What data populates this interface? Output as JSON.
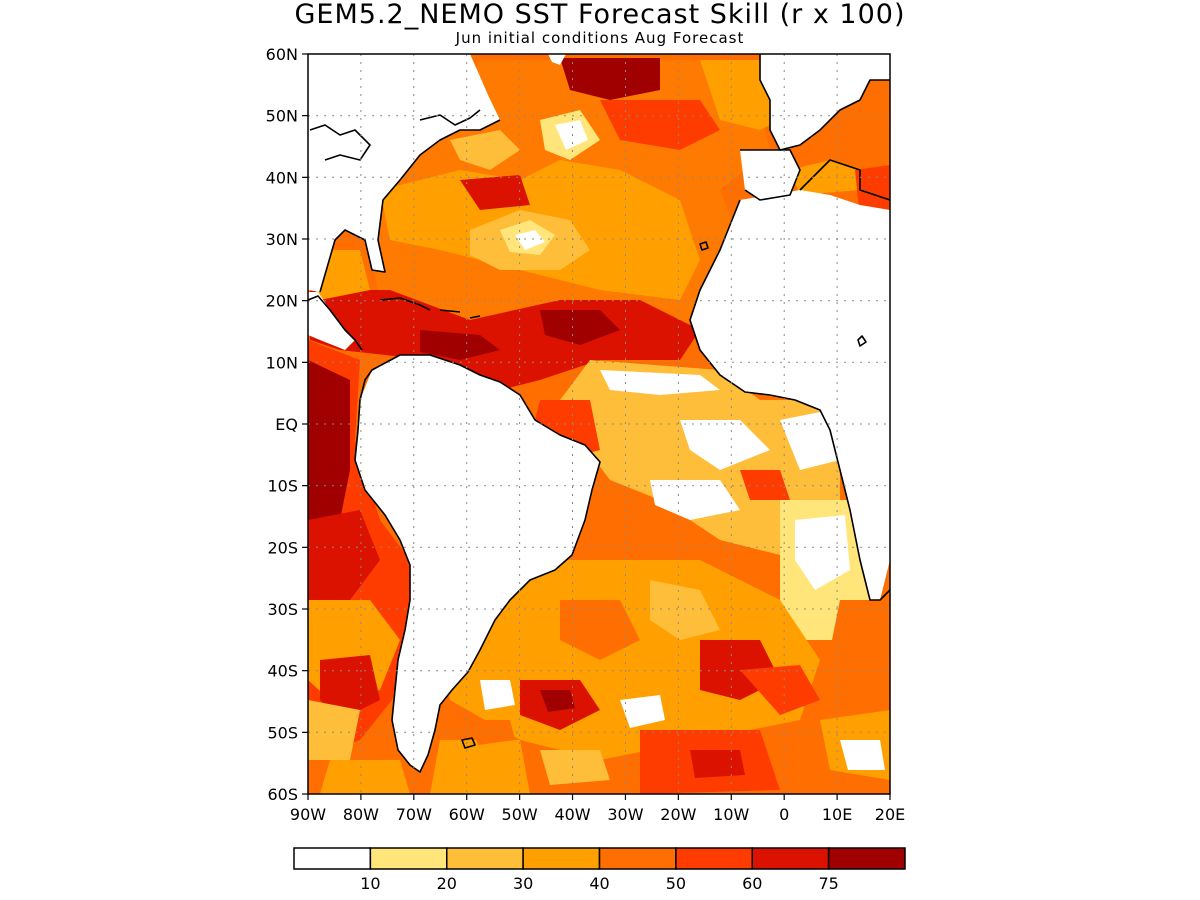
{
  "title": "GEM5.2_NEMO SST Forecast Skill (r x 100)",
  "subtitle": "Jun initial conditions  Aug Forecast",
  "map": {
    "lon_range": [
      -90,
      20
    ],
    "lat_range": [
      -60,
      60
    ],
    "lat_labels": [
      "60N",
      "50N",
      "40N",
      "30N",
      "20N",
      "10N",
      "EQ",
      "10S",
      "20S",
      "30S",
      "40S",
      "50S",
      "60S"
    ],
    "lon_labels": [
      "90W",
      "80W",
      "70W",
      "60W",
      "50W",
      "40W",
      "30W",
      "20W",
      "10W",
      "0",
      "10E",
      "20E"
    ],
    "gridlines": "dotted"
  },
  "colorbar": {
    "colors": [
      "#ffffff",
      "#ffe57a",
      "#ffbe3a",
      "#ffa000",
      "#ff6e00",
      "#ff3c00",
      "#dc1200",
      "#a00000"
    ],
    "labels": [
      "10",
      "20",
      "30",
      "40",
      "50",
      "60",
      "75"
    ]
  }
}
